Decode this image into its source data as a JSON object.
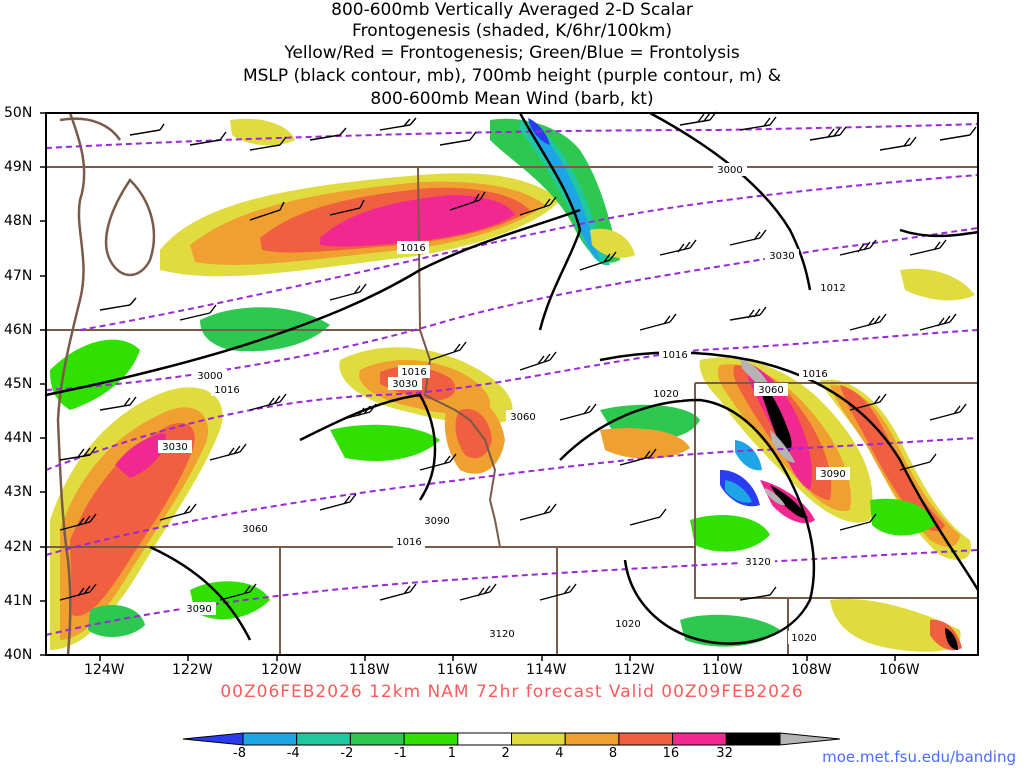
{
  "title_lines": [
    "800-600mb Vertically Averaged 2-D Scalar",
    "Frontogenesis (shaded, K/6hr/100km)",
    "Yellow/Red = Frontogenesis;  Green/Blue = Frontolysis",
    "MSLP (black contour, mb), 700mb height (purple contour, m) &",
    "800-600mb Mean Wind (barb, kt)"
  ],
  "lat_labels": [
    "50N",
    "49N",
    "48N",
    "47N",
    "46N",
    "45N",
    "44N",
    "43N",
    "42N",
    "41N",
    "40N"
  ],
  "lon_labels": [
    "124W",
    "122W",
    "120W",
    "118W",
    "116W",
    "114W",
    "112W",
    "110W",
    "108W",
    "106W"
  ],
  "valid_text": "00Z06FEB2026 12km NAM 72hr forecast Valid 00Z09FEB2026",
  "credit": "moe.met.fsu.edu/banding",
  "colorbar": {
    "labels": [
      "-8",
      "-4",
      "-2",
      "-1",
      "1",
      "2",
      "4",
      "8",
      "16",
      "32"
    ],
    "colors": [
      "#2a3cf0",
      "#1ea5e6",
      "#20c8a0",
      "#2ec850",
      "#30e000",
      "#ffffff",
      "#e0dc40",
      "#f0a030",
      "#f06040",
      "#f02890",
      "#000000",
      "#b4b4b4"
    ]
  },
  "mslp_labels": [
    "1016",
    "1012",
    "1016",
    "1016",
    "1016",
    "1020",
    "1016",
    "1020",
    "1016",
    "1020"
  ],
  "height_labels": [
    "3000",
    "3030",
    "3000",
    "3030",
    "3060",
    "3030",
    "3060",
    "3090",
    "3090",
    "3060",
    "3120",
    "3090",
    "3120"
  ],
  "colors": {
    "mslp": "#000000",
    "height": "#9a28d8",
    "borders": "#7a5a48",
    "valid": "#ff5a5a"
  }
}
